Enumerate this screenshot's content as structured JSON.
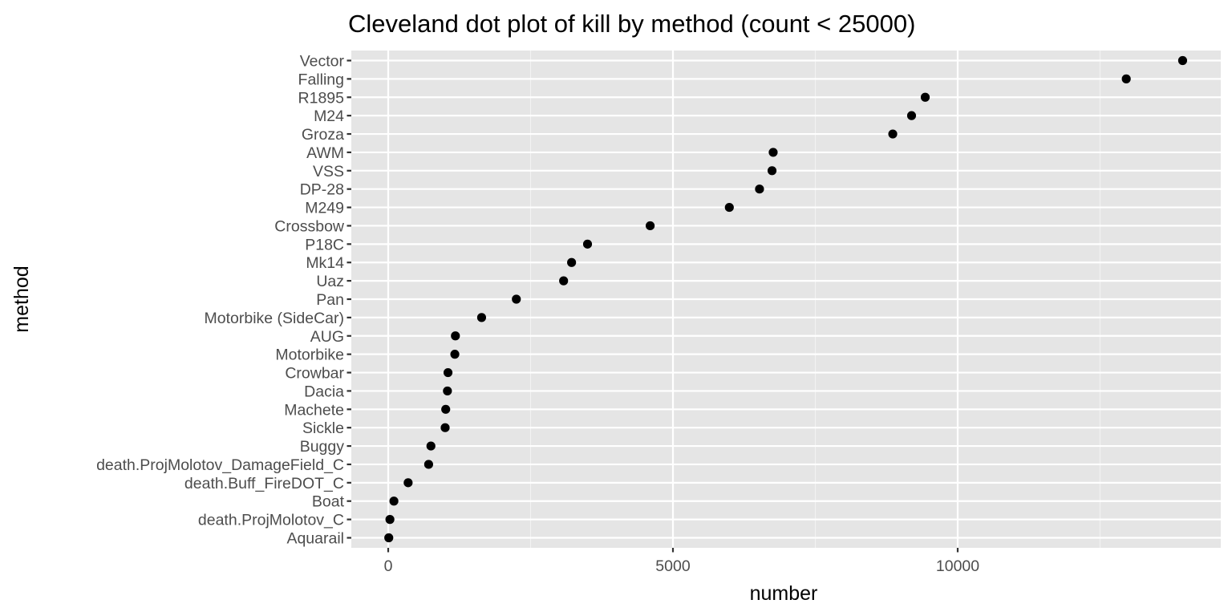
{
  "chart_data": {
    "type": "scatter",
    "title": "Cleveland dot plot of kill by method (count < 25000)",
    "xlabel": "number",
    "ylabel": "method",
    "xlim": [
      -650,
      14750
    ],
    "x_ticks": [
      0,
      5000,
      10000
    ],
    "x_tick_labels": [
      "0",
      "5000",
      "10000"
    ],
    "grid": true,
    "legend": "none",
    "point_color": "#000000",
    "panel_color": "#e5e5e5",
    "categories": [
      "Vector",
      "Falling",
      "R1895",
      "M24",
      "Groza",
      "AWM",
      "VSS",
      "DP-28",
      "M249",
      "Crossbow",
      "P18C",
      "Mk14",
      "Uaz",
      "Pan",
      "Motorbike (SideCar)",
      "AUG",
      "Motorbike",
      "Crowbar",
      "Dacia",
      "Machete",
      "Sickle",
      "Buggy",
      "death.ProjMolotov_DamageField_C",
      "death.Buff_FireDOT_C",
      "Boat",
      "death.ProjMolotov_C",
      "Aquarail"
    ],
    "values": [
      13950,
      12960,
      9430,
      9190,
      8860,
      6760,
      6740,
      6520,
      5990,
      4600,
      3500,
      3220,
      3080,
      2250,
      1640,
      1180,
      1170,
      1050,
      1040,
      1010,
      1000,
      750,
      710,
      350,
      100,
      30,
      10
    ]
  }
}
